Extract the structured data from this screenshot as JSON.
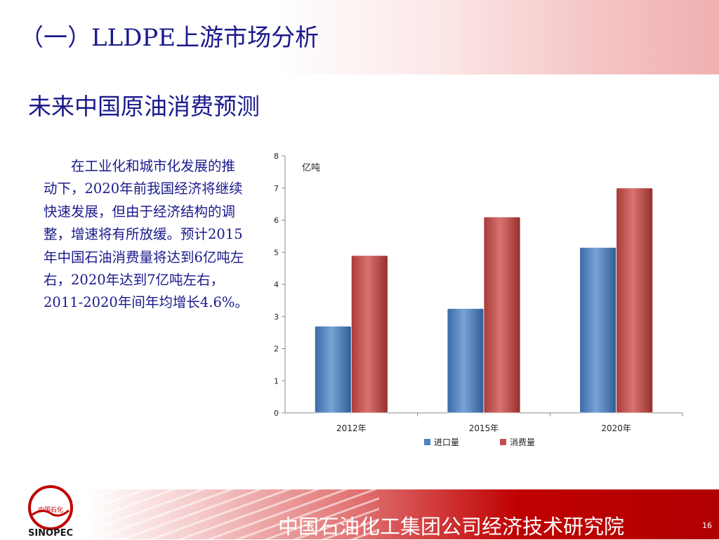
{
  "header": {
    "title": "（一）LLDPE上游市场分析"
  },
  "subtitle": "未来中国原油消费预测",
  "body_text": "在工业化和城市化发展的推动下，2020年前我国经济将继续快速发展，但由于经济结构的调整，增速将有所放缓。预计2015年中国石油消费量将达到6亿吨左右，2020年达到7亿吨左右，2011-2020年间年均增长4.6%。",
  "chart_data": {
    "type": "bar",
    "categories": [
      "2012年",
      "2015年",
      "2020年"
    ],
    "series": [
      {
        "name": "进口量",
        "values": [
          2.7,
          3.25,
          5.15
        ],
        "color": "#4f81bd"
      },
      {
        "name": "消费量",
        "values": [
          4.9,
          6.1,
          7.0
        ],
        "color": "#c0504d"
      }
    ],
    "ylabel": "亿吨",
    "ylim": [
      0,
      8
    ],
    "yticks": [
      "0",
      "1",
      "2",
      "3",
      "4",
      "5",
      "6",
      "7",
      "8"
    ],
    "legend_position": "bottom"
  },
  "footer": {
    "organization": "中国石油化工集团公司经济技术研究院",
    "page_number": "16",
    "logo_text": "中国石化 SINOPEC"
  },
  "colors": {
    "title": "#1a1a8c",
    "footer_red": "#c00000"
  }
}
